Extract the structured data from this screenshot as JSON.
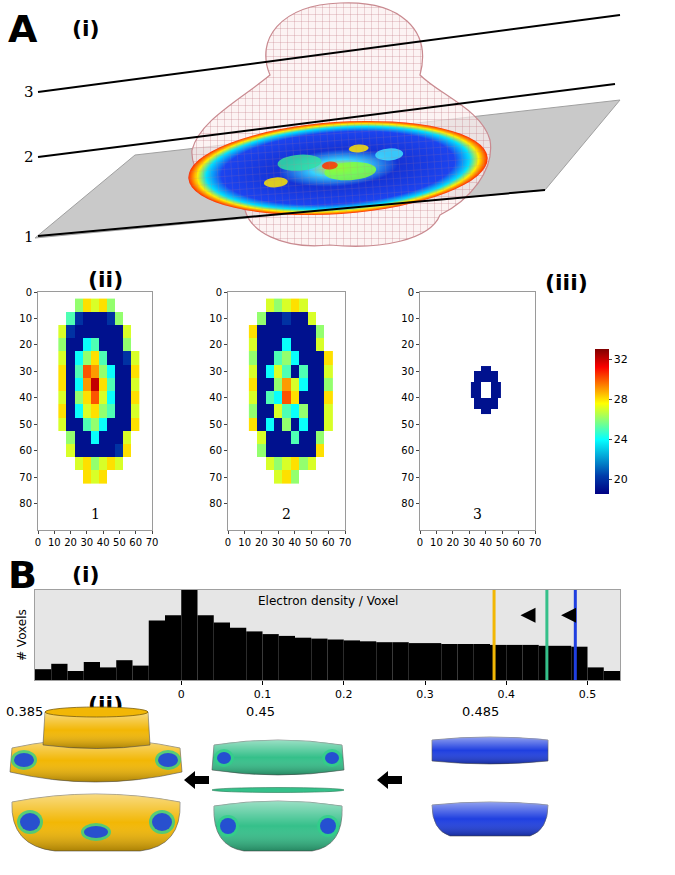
{
  "figure": {
    "panel_A": {
      "label": "A",
      "parts": [
        "(i)",
        "(ii)",
        "(iii)"
      ],
      "slice_labels": [
        "1",
        "2",
        "3"
      ]
    },
    "panel_B": {
      "label": "B",
      "parts": [
        "(i)",
        "(ii)"
      ]
    }
  },
  "chart_data": [
    {
      "type": "heatmap",
      "annotation": "1",
      "grid": false,
      "xlim": [
        0,
        70
      ],
      "ylim": [
        90,
        0
      ],
      "xticks": [
        0,
        10,
        20,
        30,
        40,
        50,
        60,
        70
      ],
      "yticks": [
        0,
        10,
        20,
        30,
        40,
        50,
        60,
        70,
        80
      ],
      "x": [
        15,
        20,
        25,
        30,
        35,
        40,
        45,
        50,
        55,
        60
      ],
      "y": [
        5,
        10,
        15,
        20,
        25,
        30,
        35,
        40,
        45,
        50,
        55,
        60,
        65,
        70
      ],
      "cells": [
        [
          null,
          null,
          26,
          28,
          27,
          28,
          26,
          null,
          null,
          null
        ],
        [
          null,
          25,
          20,
          19,
          19,
          19,
          20,
          26,
          null,
          null
        ],
        [
          27,
          20,
          19,
          19,
          19,
          19,
          19,
          19,
          27,
          null
        ],
        [
          26,
          19,
          19,
          24,
          25,
          19,
          19,
          19,
          26,
          null
        ],
        [
          27,
          19,
          24,
          26,
          28,
          25,
          19,
          19,
          20,
          27
        ],
        [
          28,
          19,
          25,
          30,
          29,
          26,
          24,
          19,
          19,
          28
        ],
        [
          28,
          19,
          24,
          29,
          32,
          28,
          25,
          19,
          19,
          27
        ],
        [
          27,
          19,
          26,
          28,
          30,
          27,
          24,
          19,
          19,
          28
        ],
        [
          28,
          19,
          24,
          27,
          28,
          26,
          25,
          19,
          19,
          27
        ],
        [
          27,
          19,
          19,
          25,
          26,
          24,
          19,
          19,
          19,
          28
        ],
        [
          null,
          26,
          19,
          19,
          24,
          19,
          19,
          19,
          27,
          null
        ],
        [
          null,
          27,
          19,
          19,
          19,
          19,
          19,
          20,
          28,
          null
        ],
        [
          null,
          null,
          27,
          28,
          26,
          27,
          28,
          27,
          null,
          null
        ],
        [
          null,
          null,
          null,
          28,
          27,
          28,
          null,
          null,
          null,
          null
        ]
      ]
    },
    {
      "type": "heatmap",
      "annotation": "2",
      "grid": false,
      "xlim": [
        0,
        70
      ],
      "ylim": [
        90,
        0
      ],
      "xticks": [
        0,
        10,
        20,
        30,
        40,
        50,
        60,
        70
      ],
      "yticks": [
        0,
        10,
        20,
        30,
        40,
        50,
        60,
        70,
        80
      ],
      "x": [
        15,
        20,
        25,
        30,
        35,
        40,
        45,
        50,
        55,
        60
      ],
      "y": [
        5,
        10,
        15,
        20,
        25,
        30,
        35,
        40,
        45,
        50,
        55,
        60,
        65,
        70
      ],
      "cells": [
        [
          null,
          null,
          27,
          26,
          27,
          28,
          27,
          null,
          null,
          null
        ],
        [
          null,
          26,
          19,
          19,
          20,
          19,
          19,
          27,
          null,
          null
        ],
        [
          28,
          19,
          19,
          19,
          19,
          19,
          19,
          19,
          26,
          null
        ],
        [
          27,
          19,
          19,
          19,
          24,
          19,
          19,
          19,
          27,
          null
        ],
        [
          26,
          19,
          19,
          25,
          26,
          24,
          19,
          19,
          19,
          28
        ],
        [
          27,
          19,
          24,
          27,
          25,
          19,
          25,
          19,
          19,
          27
        ],
        [
          28,
          19,
          19,
          26,
          29,
          27,
          24,
          19,
          19,
          26
        ],
        [
          27,
          19,
          25,
          24,
          30,
          28,
          19,
          19,
          19,
          28
        ],
        [
          26,
          19,
          19,
          27,
          25,
          24,
          26,
          19,
          19,
          27
        ],
        [
          28,
          19,
          24,
          19,
          26,
          19,
          24,
          19,
          19,
          27
        ],
        [
          null,
          27,
          19,
          19,
          19,
          25,
          19,
          19,
          26,
          null
        ],
        [
          null,
          26,
          19,
          19,
          19,
          19,
          19,
          19,
          28,
          null
        ],
        [
          null,
          null,
          27,
          26,
          27,
          28,
          26,
          27,
          null,
          null
        ],
        [
          null,
          null,
          null,
          27,
          28,
          26,
          null,
          null,
          null,
          null
        ]
      ]
    },
    {
      "type": "heatmap",
      "annotation": "3",
      "grid": false,
      "xlim": [
        0,
        70
      ],
      "ylim": [
        90,
        0
      ],
      "xticks": [
        0,
        10,
        20,
        30,
        40,
        50,
        60,
        70
      ],
      "yticks": [
        0,
        10,
        20,
        30,
        40,
        50,
        60,
        70,
        80
      ],
      "x": [
        32,
        34,
        36,
        38,
        40,
        42,
        44,
        46,
        48
      ],
      "y": [
        29,
        31,
        33,
        35,
        37,
        39,
        41,
        43,
        45
      ],
      "cells": [
        [
          null,
          null,
          null,
          19,
          19,
          19,
          null,
          null,
          null
        ],
        [
          null,
          19,
          19,
          19,
          19,
          19,
          19,
          19,
          null
        ],
        [
          null,
          19,
          19,
          19,
          19,
          19,
          19,
          19,
          null
        ],
        [
          19,
          19,
          19,
          null,
          null,
          null,
          19,
          19,
          19
        ],
        [
          19,
          19,
          19,
          null,
          null,
          null,
          19,
          19,
          19
        ],
        [
          19,
          19,
          19,
          null,
          null,
          null,
          19,
          19,
          19
        ],
        [
          null,
          19,
          19,
          19,
          19,
          19,
          19,
          19,
          null
        ],
        [
          null,
          19,
          19,
          19,
          19,
          19,
          19,
          19,
          null
        ],
        [
          null,
          null,
          null,
          19,
          19,
          19,
          null,
          null,
          null
        ]
      ],
      "colorbar": {
        "range": [
          18.5,
          33
        ],
        "ticks": [
          20,
          24,
          28,
          32
        ]
      }
    },
    {
      "type": "histogram",
      "x_label": "Electron density / Voxel",
      "y_label": "# Voxels",
      "color": "#000000",
      "grid": false,
      "tick_labels": "x",
      "xlim": [
        -0.18,
        0.54
      ],
      "ylim": [
        0,
        100
      ],
      "xticks": [
        0,
        0.1,
        0.2,
        0.3,
        0.4,
        0.5
      ],
      "bins": [
        -0.18,
        -0.16,
        -0.14,
        -0.12,
        -0.1,
        -0.08,
        -0.06,
        -0.04,
        -0.02,
        0,
        0.02,
        0.04,
        0.06,
        0.08,
        0.1,
        0.12,
        0.14,
        0.16,
        0.18,
        0.2,
        0.22,
        0.24,
        0.26,
        0.28,
        0.3,
        0.32,
        0.34,
        0.36,
        0.38,
        0.4,
        0.42,
        0.44,
        0.46,
        0.48,
        0.5,
        0.52,
        0.54
      ],
      "counts": [
        12,
        18,
        10,
        20,
        14,
        22,
        16,
        66,
        72,
        100,
        72,
        64,
        58,
        54,
        51,
        49,
        47,
        46,
        45,
        44,
        43,
        42,
        42,
        41,
        41,
        40,
        40,
        40,
        39,
        39,
        39,
        38,
        38,
        37,
        14,
        10
      ],
      "thresholds": [
        {
          "value": 0.385,
          "color": "#f2b705"
        },
        {
          "value": 0.45,
          "color": "#35c08a"
        },
        {
          "value": 0.485,
          "color": "#1f3fe0"
        }
      ]
    }
  ]
}
